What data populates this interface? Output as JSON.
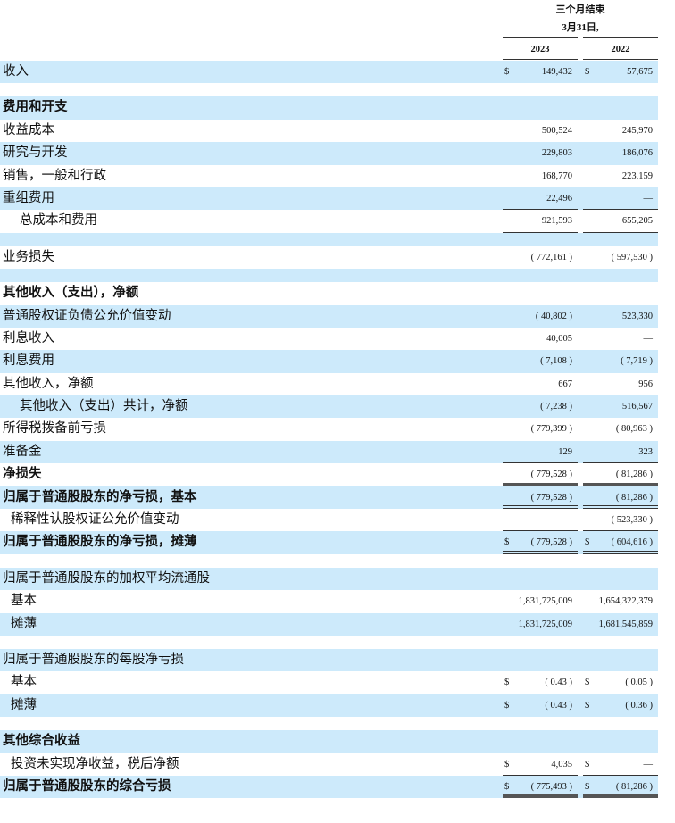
{
  "header": {
    "period": "三个月结束",
    "date": "3月31日,",
    "years": [
      "2023",
      "2022"
    ]
  },
  "rows": [
    {
      "label": "收入",
      "v": [
        "149,432",
        "57,675"
      ],
      "dollar": [
        true,
        true
      ]
    },
    {
      "spacer": true
    },
    {
      "label": "费用和开支",
      "v": [
        "",
        ""
      ]
    },
    {
      "label": "收益成本",
      "v": [
        "500,524",
        "245,970"
      ]
    },
    {
      "label": "研究与开发",
      "v": [
        "229,803",
        "186,076"
      ]
    },
    {
      "label": "销售，一般和行政",
      "v": [
        "168,770",
        "223,159"
      ]
    },
    {
      "label": "重组费用",
      "v": [
        "22,496",
        "—"
      ]
    },
    {
      "label": "总成本和费用",
      "v": [
        "921,593",
        "655,205"
      ]
    },
    {
      "spacer": true
    },
    {
      "label": "业务损失",
      "v": [
        "( 772,161 )",
        "( 597,530 )"
      ]
    },
    {
      "spacer": true
    },
    {
      "label": "其他收入（支出），净额",
      "v": [
        "",
        ""
      ]
    },
    {
      "label": "普通股权证负债公允价值变动",
      "v": [
        "( 40,802 )",
        "523,330"
      ]
    },
    {
      "label": "利息收入",
      "v": [
        "40,005",
        "—"
      ]
    },
    {
      "label": "利息费用",
      "v": [
        "( 7,108 )",
        "( 7,719 )"
      ]
    },
    {
      "label": "其他收入，净额",
      "v": [
        "667",
        "956"
      ]
    },
    {
      "label": "其他收入（支出）共计，净额",
      "v": [
        "( 7,238 )",
        "516,567"
      ]
    },
    {
      "label": "所得税拨备前亏损",
      "v": [
        "( 779,399 )",
        "( 80,963 )"
      ]
    },
    {
      "label": "准备金",
      "v": [
        "129",
        "323"
      ]
    },
    {
      "label": "净损失",
      "v": [
        "( 779,528 )",
        "( 81,286 )"
      ]
    },
    {
      "label": "归属于普通股股东的净亏损，基本",
      "v": [
        "( 779,528 )",
        "( 81,286 )"
      ]
    },
    {
      "label": "稀释性认股权证公允价值变动",
      "v": [
        "—",
        "( 523,330 )"
      ]
    },
    {
      "label": "归属于普通股股东的净亏损，摊薄",
      "v": [
        "( 779,528 )",
        "( 604,616 )"
      ],
      "dollar": [
        true,
        true
      ]
    },
    {
      "spacer": true
    },
    {
      "label": "归属于普通股股东的加权平均流通股",
      "v": [
        "",
        ""
      ]
    },
    {
      "label": "基本",
      "v": [
        "1,831,725,009",
        "1,654,322,379"
      ]
    },
    {
      "label": "摊薄",
      "v": [
        "1,831,725,009",
        "1,681,545,859"
      ]
    },
    {
      "spacer": true
    },
    {
      "label": "归属于普通股股东的每股净亏损",
      "v": [
        "",
        ""
      ]
    },
    {
      "label": "基本",
      "v": [
        "( 0.43 )",
        "( 0.05 )"
      ],
      "dollar": [
        true,
        true
      ]
    },
    {
      "label": "摊薄",
      "v": [
        "( 0.43 )",
        "( 0.36 )"
      ],
      "dollar": [
        true,
        true
      ]
    },
    {
      "spacer": true
    },
    {
      "label": "其他综合收益",
      "v": [
        "",
        ""
      ]
    },
    {
      "label": "投资未实现净收益，税后净额",
      "v": [
        "4,035",
        "—"
      ],
      "dollar": [
        true,
        true
      ]
    },
    {
      "label": "归属于普通股股东的综合亏损",
      "v": [
        "( 775,493 )",
        "( 81,286 )"
      ],
      "dollar": [
        true,
        true
      ]
    }
  ],
  "currency_symbol": "$",
  "colors": {
    "row_shade": "#cdeafb"
  }
}
